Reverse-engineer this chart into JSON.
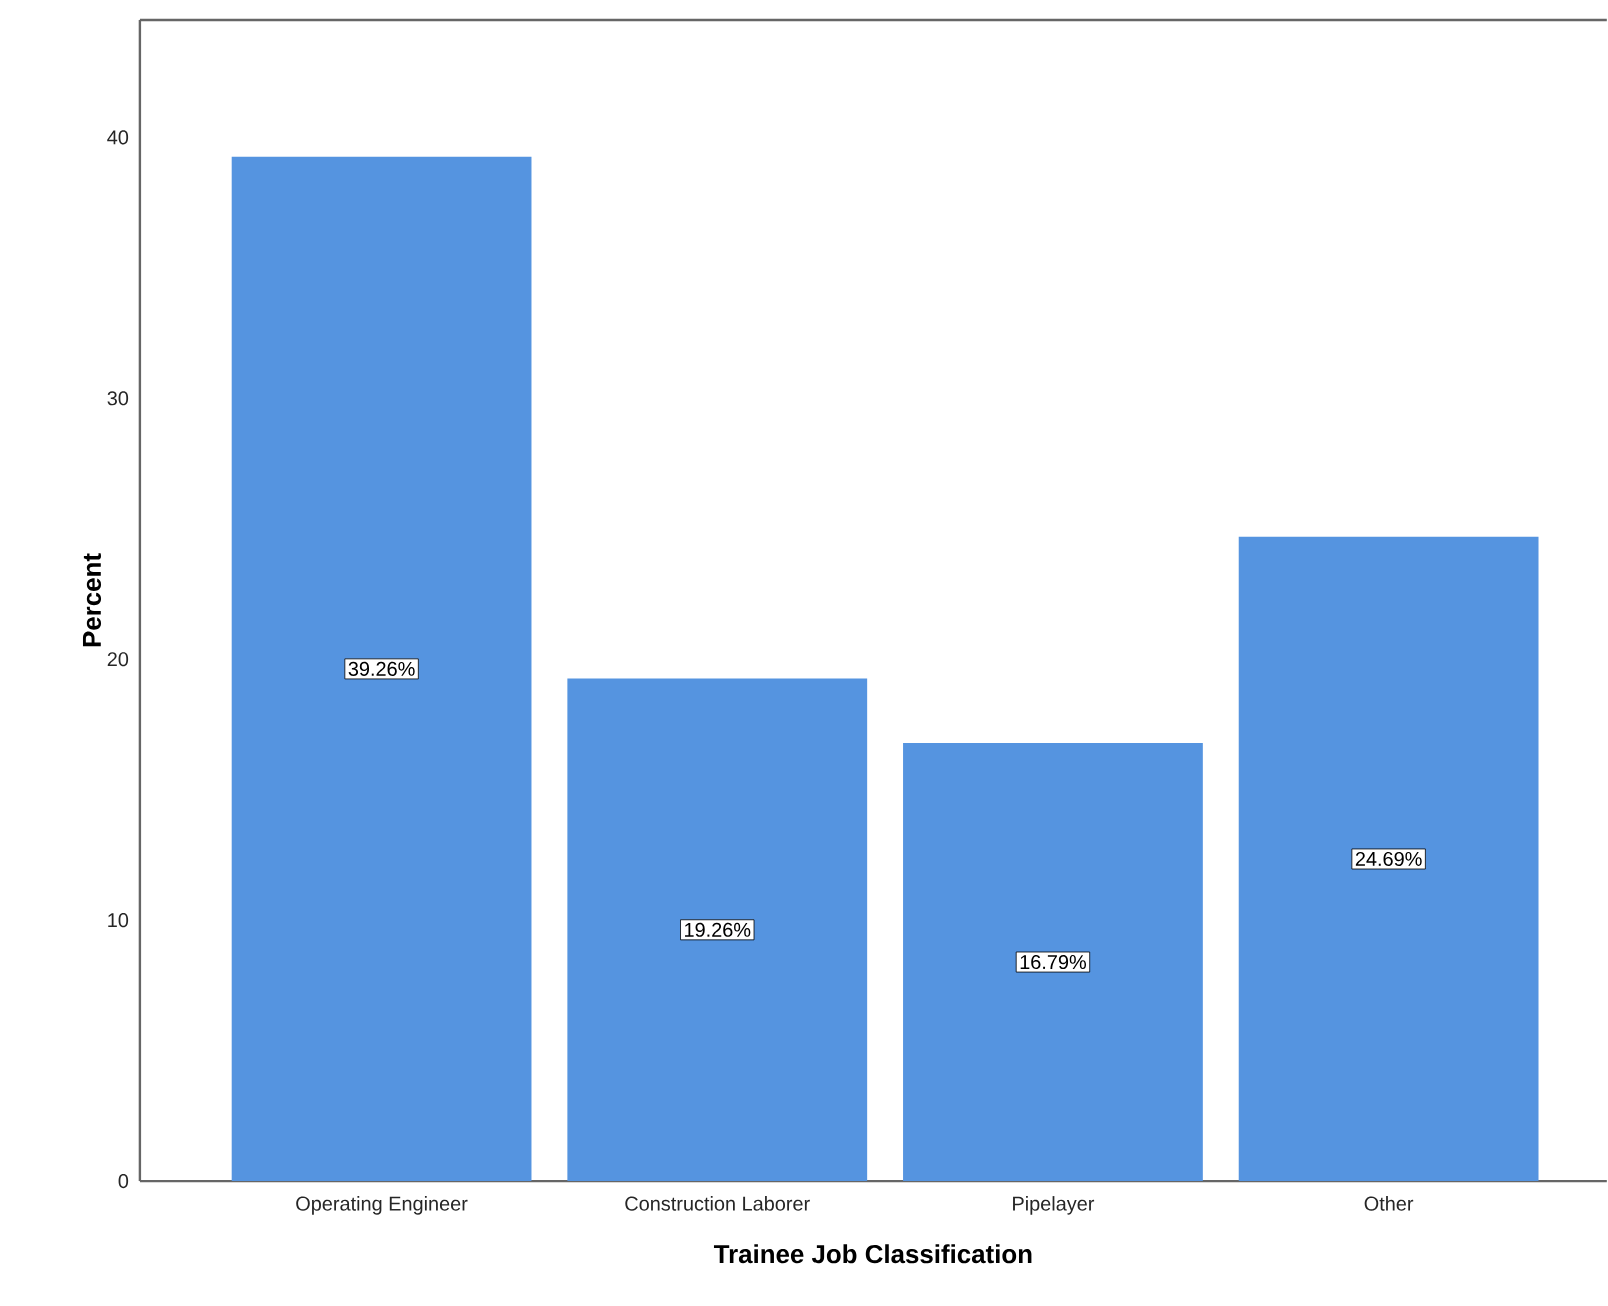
{
  "chart_data": {
    "type": "bar",
    "xlabel": "Trainee Job Classification",
    "ylabel": "Percent",
    "categories": [
      "Operating Engineer",
      "Construction Laborer",
      "Pipelayer",
      "Other"
    ],
    "values": [
      39.26,
      19.26,
      16.79,
      24.69
    ],
    "value_labels": [
      "39.26%",
      "19.26%",
      "16.79%",
      "24.69%"
    ],
    "color": "#5594e0",
    "ylim": [
      0,
      44.5
    ],
    "yticks": [
      0,
      10,
      20,
      30,
      40
    ],
    "grid": false
  }
}
